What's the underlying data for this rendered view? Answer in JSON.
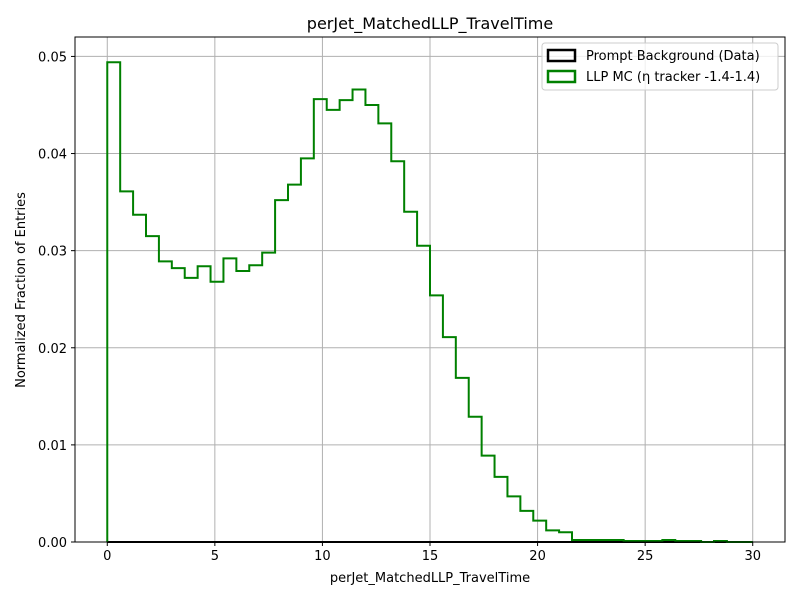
{
  "chart_data": {
    "type": "histogram",
    "title": "perJet_MatchedLLP_TravelTime",
    "xlabel": "perJet_MatchedLLP_TravelTime",
    "ylabel": "Normalized Fraction of Entries",
    "xlim": [
      -1.5,
      31.5
    ],
    "ylim": [
      0,
      0.052
    ],
    "xticks": [
      0,
      5,
      10,
      15,
      20,
      25,
      30
    ],
    "xtick_labels": [
      "0",
      "5",
      "10",
      "15",
      "20",
      "25",
      "30"
    ],
    "yticks": [
      0.0,
      0.01,
      0.02,
      0.03,
      0.04,
      0.05
    ],
    "ytick_labels": [
      "0.00",
      "0.01",
      "0.02",
      "0.03",
      "0.04",
      "0.05"
    ],
    "grid": true,
    "legend_position": "top-right",
    "bin_edges": [
      0.0,
      0.6,
      1.2,
      1.8,
      2.4,
      3.0,
      3.6,
      4.2,
      4.8,
      5.4,
      6.0,
      6.6,
      7.2,
      7.8,
      8.4,
      9.0,
      9.6,
      10.2,
      10.8,
      11.4,
      12.0,
      12.6,
      13.2,
      13.8,
      14.4,
      15.0,
      15.6,
      16.2,
      16.8,
      17.4,
      18.0,
      18.6,
      19.2,
      19.8,
      20.4,
      21.0,
      21.6,
      22.2,
      22.8,
      23.4,
      24.0,
      24.6,
      25.2,
      25.8,
      26.4,
      27.0,
      27.6,
      28.2,
      28.8,
      29.4,
      30.0
    ],
    "series": [
      {
        "name": "Prompt Background (Data)",
        "color": "#000000",
        "values": [
          0,
          0,
          0,
          0,
          0,
          0,
          0,
          0,
          0,
          0,
          0,
          0,
          0,
          0,
          0,
          0,
          0,
          0,
          0,
          0,
          0,
          0,
          0,
          0,
          0,
          0,
          0,
          0,
          0,
          0,
          0,
          0,
          0,
          0,
          0,
          0,
          0,
          0,
          0,
          0,
          0,
          0,
          0,
          0,
          0,
          0,
          0,
          0,
          0,
          0
        ]
      },
      {
        "name": "LLP MC (η tracker -1.4-1.4)",
        "color": "#008000",
        "values": [
          0.0494,
          0.0361,
          0.0337,
          0.0315,
          0.0289,
          0.0282,
          0.0272,
          0.0284,
          0.0268,
          0.0292,
          0.0279,
          0.0285,
          0.0298,
          0.0352,
          0.0368,
          0.0395,
          0.0456,
          0.0445,
          0.0455,
          0.0466,
          0.045,
          0.0431,
          0.0392,
          0.034,
          0.0305,
          0.0254,
          0.0211,
          0.0169,
          0.0129,
          0.0089,
          0.0067,
          0.0047,
          0.0032,
          0.0022,
          0.0012,
          0.001,
          0.0002,
          0.0002,
          0.0002,
          0.0002,
          0.0001,
          0.0001,
          0.0001,
          0.0002,
          0.0001,
          0.0001,
          0.0,
          0.0001,
          0.0,
          0.0
        ]
      }
    ]
  }
}
